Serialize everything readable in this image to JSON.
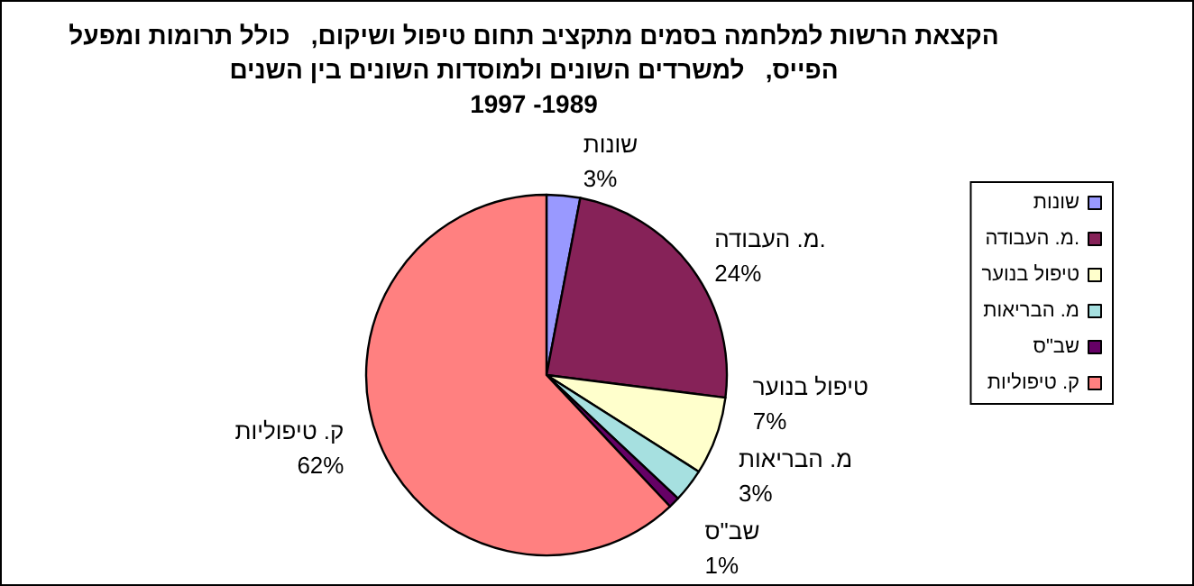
{
  "chart_data": {
    "type": "pie",
    "title": "הקצאת הרשות למלחמה בסמים מתקציב תחום טיפול ושיקום,   כולל תרומות ומפעל\nהפייס,   למשרדים השונים ולמוסדות השונים בין השנים\n1997 -1989",
    "categories": [
      "שונות",
      "מ. העבודה.",
      "טיפול בנוער",
      "מ. הבריאות",
      "שב\"ס",
      "ק. טיפוליות"
    ],
    "values": [
      3,
      24,
      7,
      3,
      1,
      62
    ],
    "value_labels": [
      "3%",
      "24%",
      "7%",
      "3%",
      "1%",
      "62%"
    ],
    "colors": [
      "#9999ff",
      "#862258",
      "#ffffcc",
      "#a6e0e0",
      "#660066",
      "#ff8080"
    ],
    "legend": "right"
  }
}
